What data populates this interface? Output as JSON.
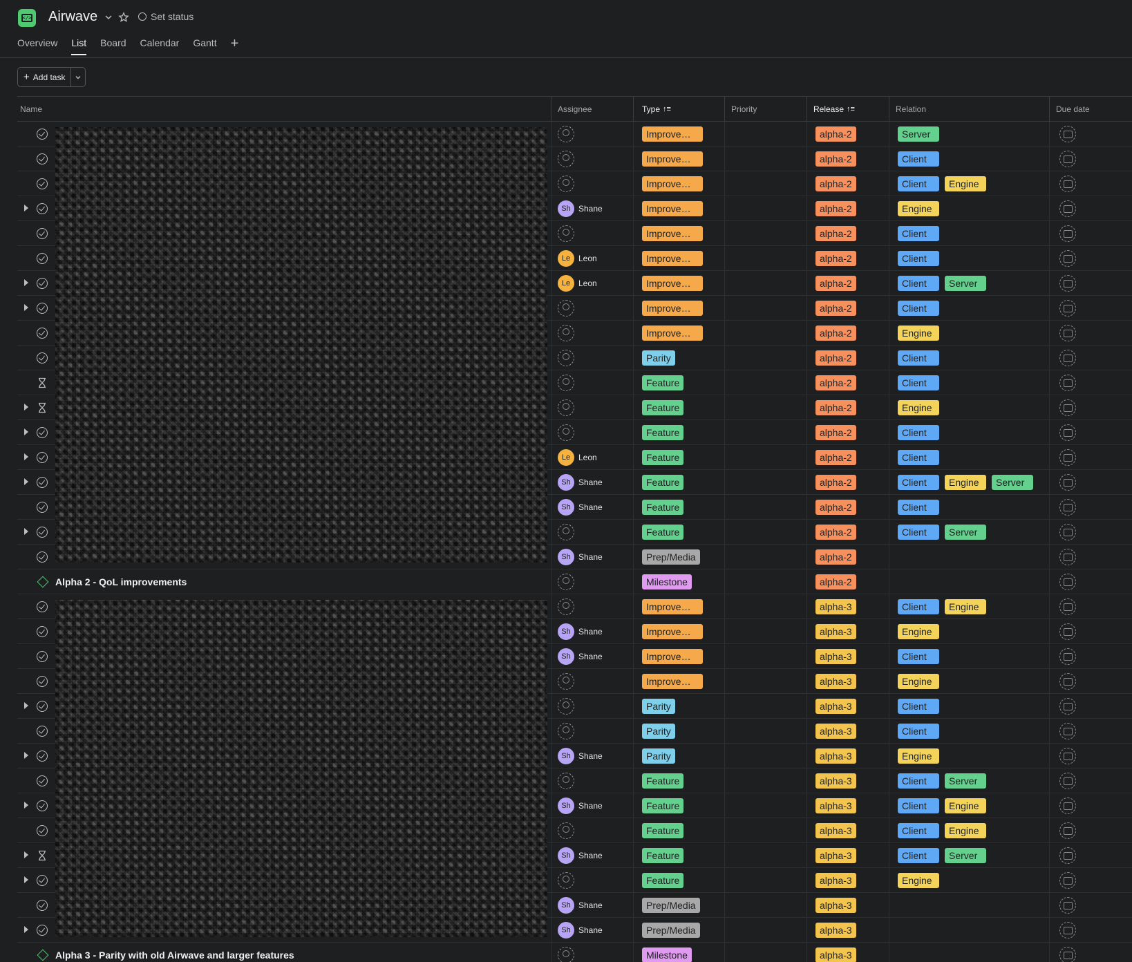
{
  "project": {
    "title": "Airwave",
    "set_status_label": "Set status"
  },
  "tabs": [
    {
      "label": "Overview",
      "active": false
    },
    {
      "label": "List",
      "active": true
    },
    {
      "label": "Board",
      "active": false
    },
    {
      "label": "Calendar",
      "active": false
    },
    {
      "label": "Gantt",
      "active": false
    }
  ],
  "toolbar": {
    "add_task_label": "Add task"
  },
  "columns": {
    "name": "Name",
    "assignee": "Assignee",
    "type": "Type",
    "priority": "Priority",
    "release": "Release",
    "relation": "Relation",
    "due_date": "Due date"
  },
  "colors": {
    "Improvement": "#f5a94b",
    "Parity": "#7dcfea",
    "Feature": "#63d18d",
    "Prep/Media": "#a8a8a8",
    "Milestone": "#e09af0",
    "alpha-2": "#f6915e",
    "alpha-3": "#f3c54e",
    "Server": "#63d18d",
    "Client": "#5ea8f6",
    "Engine": "#f3d35a",
    "avatar_Sh": "#b7a4f6",
    "avatar_Le": "#f6b23e"
  },
  "rows": [
    {
      "expand": false,
      "status": "check",
      "assignee": null,
      "type": "Improvement",
      "type_label": "Improvem…",
      "release": "alpha-2",
      "relations": [
        "Server"
      ]
    },
    {
      "expand": false,
      "status": "check",
      "assignee": null,
      "type": "Improvement",
      "type_label": "Improvem…",
      "release": "alpha-2",
      "relations": [
        "Client"
      ]
    },
    {
      "expand": false,
      "status": "check",
      "assignee": null,
      "type": "Improvement",
      "type_label": "Improvem…",
      "release": "alpha-2",
      "relations": [
        "Client",
        "Engine"
      ]
    },
    {
      "expand": true,
      "status": "check",
      "assignee": {
        "initials": "Sh",
        "name": "Shane"
      },
      "type": "Improvement",
      "type_label": "Improvem…",
      "release": "alpha-2",
      "relations": [
        "Engine"
      ]
    },
    {
      "expand": false,
      "status": "check",
      "assignee": null,
      "type": "Improvement",
      "type_label": "Improvem…",
      "release": "alpha-2",
      "relations": [
        "Client"
      ]
    },
    {
      "expand": false,
      "status": "check",
      "assignee": {
        "initials": "Le",
        "name": "Leon"
      },
      "type": "Improvement",
      "type_label": "Improvem…",
      "release": "alpha-2",
      "relations": [
        "Client"
      ]
    },
    {
      "expand": true,
      "status": "check",
      "assignee": {
        "initials": "Le",
        "name": "Leon"
      },
      "type": "Improvement",
      "type_label": "Improvem…",
      "release": "alpha-2",
      "relations": [
        "Client",
        "Server"
      ]
    },
    {
      "expand": true,
      "status": "check",
      "assignee": null,
      "type": "Improvement",
      "type_label": "Improvem…",
      "release": "alpha-2",
      "relations": [
        "Client"
      ]
    },
    {
      "expand": false,
      "status": "check",
      "assignee": null,
      "type": "Improvement",
      "type_label": "Improvem…",
      "release": "alpha-2",
      "relations": [
        "Engine"
      ]
    },
    {
      "expand": false,
      "status": "check",
      "assignee": null,
      "type": "Parity",
      "type_label": "Parity",
      "release": "alpha-2",
      "relations": [
        "Client"
      ]
    },
    {
      "expand": false,
      "status": "hourglass",
      "assignee": null,
      "type": "Feature",
      "type_label": "Feature",
      "release": "alpha-2",
      "relations": [
        "Client"
      ]
    },
    {
      "expand": true,
      "status": "hourglass",
      "assignee": null,
      "type": "Feature",
      "type_label": "Feature",
      "release": "alpha-2",
      "relations": [
        "Engine"
      ]
    },
    {
      "expand": true,
      "status": "check",
      "assignee": null,
      "type": "Feature",
      "type_label": "Feature",
      "release": "alpha-2",
      "relations": [
        "Client"
      ]
    },
    {
      "expand": true,
      "status": "check",
      "assignee": {
        "initials": "Le",
        "name": "Leon"
      },
      "type": "Feature",
      "type_label": "Feature",
      "release": "alpha-2",
      "relations": [
        "Client"
      ]
    },
    {
      "expand": true,
      "status": "check",
      "assignee": {
        "initials": "Sh",
        "name": "Shane"
      },
      "type": "Feature",
      "type_label": "Feature",
      "release": "alpha-2",
      "relations": [
        "Client",
        "Engine",
        "Server"
      ]
    },
    {
      "expand": false,
      "status": "check",
      "assignee": {
        "initials": "Sh",
        "name": "Shane"
      },
      "type": "Feature",
      "type_label": "Feature",
      "release": "alpha-2",
      "relations": [
        "Client"
      ]
    },
    {
      "expand": true,
      "status": "check",
      "assignee": null,
      "type": "Feature",
      "type_label": "Feature",
      "release": "alpha-2",
      "relations": [
        "Client",
        "Server"
      ]
    },
    {
      "expand": false,
      "status": "check",
      "assignee": {
        "initials": "Sh",
        "name": "Shane"
      },
      "type": "Prep/Media",
      "type_label": "Prep/Media",
      "release": "alpha-2",
      "relations": []
    },
    {
      "expand": false,
      "status": "milestone",
      "title": "Alpha 2 - QoL improvements",
      "assignee": null,
      "type": "Milestone",
      "type_label": "Milestone",
      "release": "alpha-2",
      "relations": []
    },
    {
      "expand": false,
      "status": "check",
      "assignee": null,
      "type": "Improvement",
      "type_label": "Improvem…",
      "release": "alpha-3",
      "relations": [
        "Client",
        "Engine"
      ]
    },
    {
      "expand": false,
      "status": "check",
      "assignee": {
        "initials": "Sh",
        "name": "Shane"
      },
      "type": "Improvement",
      "type_label": "Improvem…",
      "release": "alpha-3",
      "relations": [
        "Engine"
      ]
    },
    {
      "expand": false,
      "status": "check",
      "assignee": {
        "initials": "Sh",
        "name": "Shane"
      },
      "type": "Improvement",
      "type_label": "Improvem…",
      "release": "alpha-3",
      "relations": [
        "Client"
      ]
    },
    {
      "expand": false,
      "status": "check",
      "assignee": null,
      "type": "Improvement",
      "type_label": "Improvem…",
      "release": "alpha-3",
      "relations": [
        "Engine"
      ]
    },
    {
      "expand": true,
      "status": "check",
      "assignee": null,
      "type": "Parity",
      "type_label": "Parity",
      "release": "alpha-3",
      "relations": [
        "Client"
      ]
    },
    {
      "expand": false,
      "status": "check",
      "assignee": null,
      "type": "Parity",
      "type_label": "Parity",
      "release": "alpha-3",
      "relations": [
        "Client"
      ]
    },
    {
      "expand": true,
      "status": "check",
      "assignee": {
        "initials": "Sh",
        "name": "Shane"
      },
      "type": "Parity",
      "type_label": "Parity",
      "release": "alpha-3",
      "relations": [
        "Engine"
      ]
    },
    {
      "expand": false,
      "status": "check",
      "assignee": null,
      "type": "Feature",
      "type_label": "Feature",
      "release": "alpha-3",
      "relations": [
        "Client",
        "Server"
      ]
    },
    {
      "expand": true,
      "status": "check",
      "assignee": {
        "initials": "Sh",
        "name": "Shane"
      },
      "type": "Feature",
      "type_label": "Feature",
      "release": "alpha-3",
      "relations": [
        "Client",
        "Engine"
      ]
    },
    {
      "expand": false,
      "status": "check",
      "assignee": null,
      "type": "Feature",
      "type_label": "Feature",
      "release": "alpha-3",
      "relations": [
        "Client",
        "Engine"
      ]
    },
    {
      "expand": true,
      "status": "hourglass",
      "assignee": {
        "initials": "Sh",
        "name": "Shane"
      },
      "type": "Feature",
      "type_label": "Feature",
      "release": "alpha-3",
      "relations": [
        "Client",
        "Server"
      ]
    },
    {
      "expand": true,
      "status": "check",
      "assignee": null,
      "type": "Feature",
      "type_label": "Feature",
      "release": "alpha-3",
      "relations": [
        "Engine"
      ]
    },
    {
      "expand": false,
      "status": "check",
      "assignee": {
        "initials": "Sh",
        "name": "Shane"
      },
      "type": "Prep/Media",
      "type_label": "Prep/Media",
      "release": "alpha-3",
      "relations": []
    },
    {
      "expand": true,
      "status": "check",
      "assignee": {
        "initials": "Sh",
        "name": "Shane"
      },
      "type": "Prep/Media",
      "type_label": "Prep/Media",
      "release": "alpha-3",
      "relations": []
    },
    {
      "expand": false,
      "status": "milestone",
      "title": "Alpha 3 - Parity with old Airwave and larger features",
      "assignee": null,
      "type": "Milestone",
      "type_label": "Milestone",
      "release": "alpha-3",
      "relations": []
    }
  ]
}
